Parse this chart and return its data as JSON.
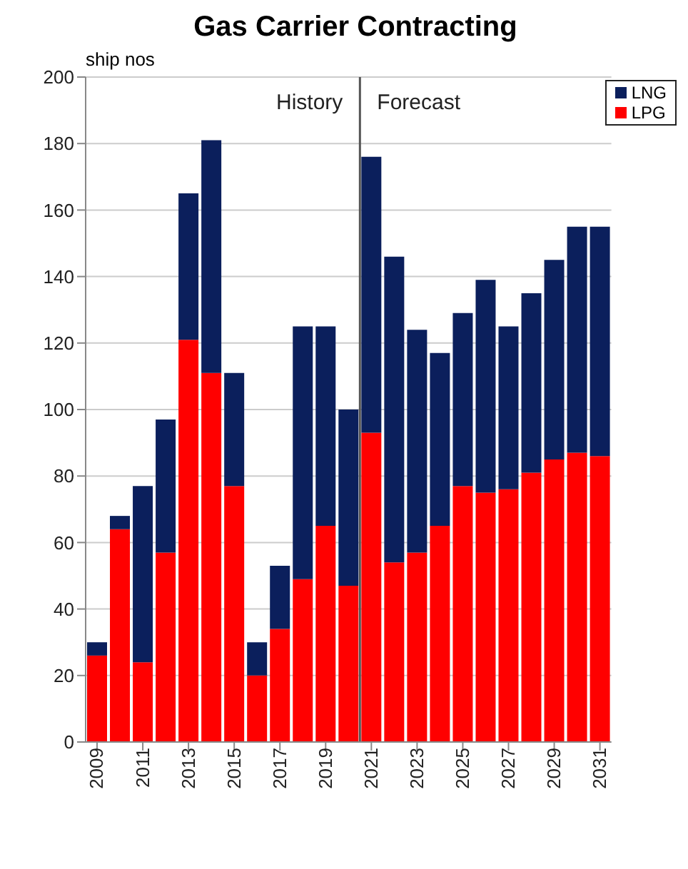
{
  "chart_data": {
    "type": "bar",
    "title": "Gas Carrier Contracting",
    "ylabel": "ship nos",
    "stacked": true,
    "x": [
      2009,
      2010,
      2011,
      2012,
      2013,
      2014,
      2015,
      2016,
      2017,
      2018,
      2019,
      2020,
      2021,
      2022,
      2023,
      2024,
      2025,
      2026,
      2027,
      2028,
      2029,
      2030,
      2031
    ],
    "xlim": [
      2008.5,
      2031.5
    ],
    "xticks": [
      2009,
      2011,
      2013,
      2015,
      2017,
      2019,
      2021,
      2023,
      2025,
      2027,
      2029,
      2031
    ],
    "ylim": [
      0,
      200
    ],
    "yticks": [
      0,
      20,
      40,
      60,
      80,
      100,
      120,
      140,
      160,
      180,
      200
    ],
    "grid": "y",
    "legend": "top right",
    "series": [
      {
        "name": "LPG",
        "color": "#ff0000",
        "values": [
          26,
          64,
          24,
          57,
          121,
          111,
          77,
          20,
          34,
          49,
          65,
          47,
          93,
          54,
          57,
          65,
          77,
          75,
          76,
          81,
          85,
          87,
          86
        ]
      },
      {
        "name": "LNG",
        "color": "#0b1f5c",
        "values": [
          4,
          4,
          53,
          40,
          44,
          70,
          34,
          10,
          19,
          76,
          60,
          53,
          83,
          92,
          67,
          52,
          52,
          64,
          49,
          54,
          60,
          68,
          69
        ]
      }
    ],
    "ref_lines": [
      {
        "axis": "x",
        "value": 2020.5,
        "label": null,
        "color": "#555555"
      }
    ],
    "annotations": [
      "History",
      "Forecast"
    ]
  }
}
